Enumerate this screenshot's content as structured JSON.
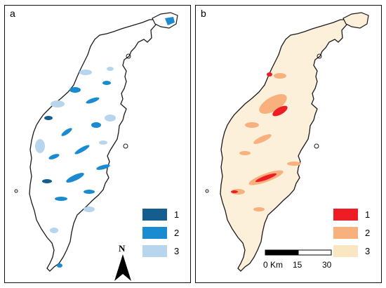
{
  "panels": [
    {
      "label": "a",
      "legend": [
        {
          "label": "1",
          "color": "#155d8f"
        },
        {
          "label": "2",
          "color": "#1a8ad1"
        },
        {
          "label": "3",
          "color": "#b8d5ee"
        }
      ],
      "north_label": "N"
    },
    {
      "label": "b",
      "legend": [
        {
          "label": "1",
          "color": "#ee1c24"
        },
        {
          "label": "2",
          "color": "#f8b07c"
        },
        {
          "label": "3",
          "color": "#fbe6c2"
        }
      ],
      "scalebar": {
        "start": "0 Km",
        "mid": "15",
        "end": "30"
      }
    }
  ],
  "colors": {
    "outline": "#1a1a1a",
    "a_lakes": "#1a8ad1",
    "b_fill": "#fdf0da"
  }
}
